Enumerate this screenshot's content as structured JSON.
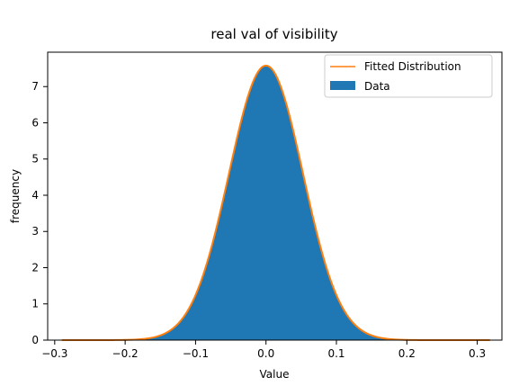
{
  "chart_data": {
    "type": "area",
    "title": "real val of visibility",
    "xlabel": "Value",
    "ylabel": "frequency",
    "xlim": [
      -0.31,
      0.335
    ],
    "ylim": [
      0,
      7.95
    ],
    "xticks": [
      -0.3,
      -0.2,
      -0.1,
      0.0,
      0.1,
      0.2,
      0.3
    ],
    "xtick_labels": [
      "−0.3",
      "−0.2",
      "−0.1",
      "0.0",
      "0.1",
      "0.2",
      "0.3"
    ],
    "yticks": [
      0,
      1,
      2,
      3,
      4,
      5,
      6,
      7
    ],
    "ytick_labels": [
      "0",
      "1",
      "2",
      "3",
      "4",
      "5",
      "6",
      "7"
    ],
    "grid": false,
    "legend_position": "top-right",
    "data_range": [
      -0.29,
      0.318
    ],
    "series": [
      {
        "name": "Fitted Distribution",
        "kind": "line",
        "color": "#ff7f0e",
        "distribution": "normal",
        "mean": 0.0,
        "std": 0.0526,
        "peak": 7.58
      },
      {
        "name": "Data",
        "kind": "filled-area",
        "color": "#1f77b4",
        "distribution": "normal",
        "mean": 0.0,
        "std": 0.0526,
        "peak": 7.58
      }
    ]
  }
}
